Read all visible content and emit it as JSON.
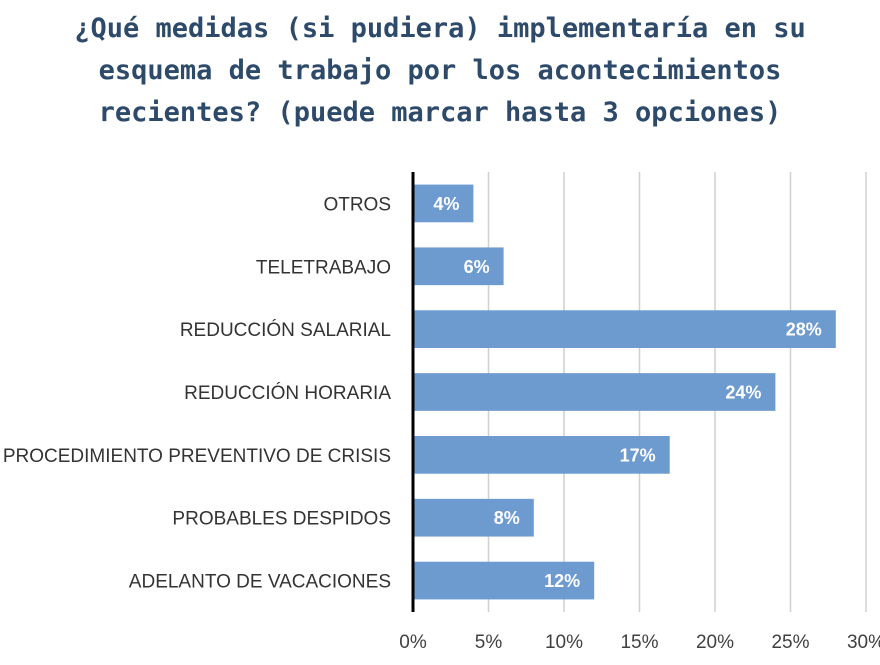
{
  "chart_data": {
    "type": "bar",
    "orientation": "horizontal",
    "title": "¿Qué medidas (si pudiera) implementaría en su\nesquema de trabajo por los acontecimientos\nrecientes? (puede marcar hasta 3 opciones)",
    "categories": [
      "OTROS",
      "TELETRABAJO",
      "REDUCCIÓN SALARIAL",
      "REDUCCIÓN HORARIA",
      "PROCEDIMIENTO PREVENTIVO DE CRISIS",
      "PROBABLES DESPIDOS",
      "ADELANTO DE VACACIONES"
    ],
    "values": [
      4,
      6,
      28,
      24,
      17,
      8,
      12
    ],
    "data_labels": [
      "4%",
      "6%",
      "28%",
      "24%",
      "17%",
      "8%",
      "12%"
    ],
    "xlim": [
      0,
      30
    ],
    "xticks": [
      0,
      5,
      10,
      15,
      20,
      25,
      30
    ],
    "xtick_labels": [
      "0%",
      "5%",
      "10%",
      "15%",
      "20%",
      "25%",
      "30%"
    ],
    "xlabel": "",
    "ylabel": "",
    "grid": "vertical",
    "legend": "none",
    "colors": {
      "bar": "#6d9bcf",
      "grid": "#d0d0d0",
      "axis": "#000000",
      "title": "#2e4a6b"
    }
  }
}
